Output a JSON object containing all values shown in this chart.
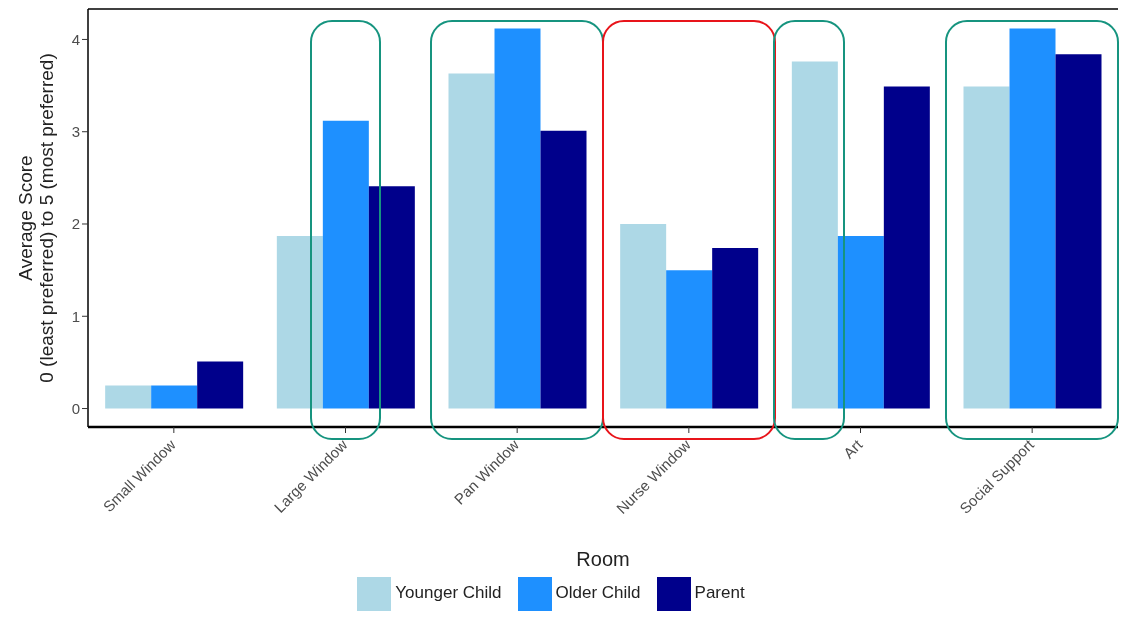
{
  "chart_data": {
    "type": "bar",
    "xlabel": "Room",
    "ylabel": "Average Score\n0 (least preferred) to 5 (most preferred)",
    "categories": [
      "Small Window",
      "Large Window",
      "Pan Window",
      "Nurse Window",
      "Art",
      "Social Support"
    ],
    "series": [
      {
        "name": "Younger Child",
        "color": "#add8e6",
        "values": [
          0.25,
          1.87,
          3.63,
          2.0,
          3.76,
          3.49
        ]
      },
      {
        "name": "Older Child",
        "color": "#1e90ff",
        "values": [
          0.25,
          3.12,
          4.12,
          1.5,
          1.87,
          4.12
        ]
      },
      {
        "name": "Parent",
        "color": "#00008b",
        "values": [
          0.51,
          2.41,
          3.01,
          1.74,
          3.49,
          3.84
        ]
      }
    ],
    "ylim": [
      -0.2,
      4.33
    ],
    "yticks": [
      0,
      1,
      2,
      3,
      4
    ],
    "legend": "bottom"
  }
}
